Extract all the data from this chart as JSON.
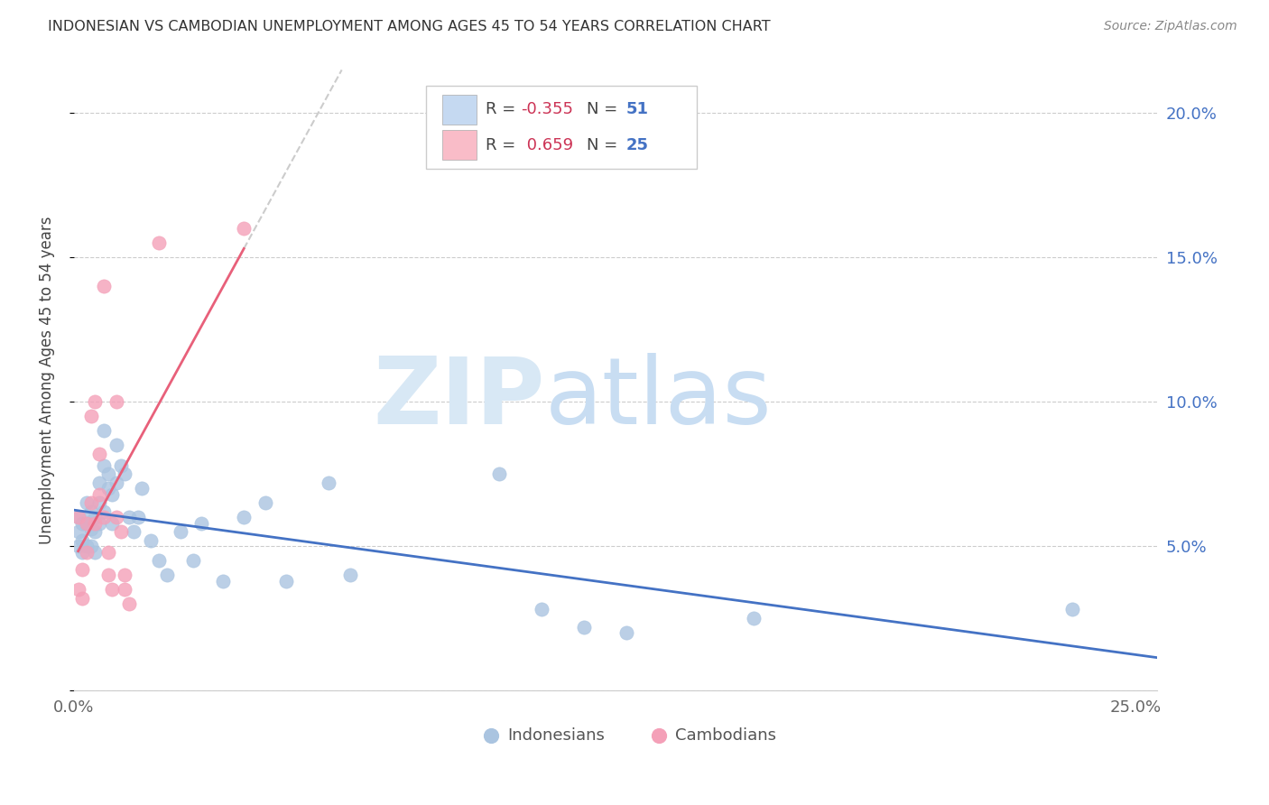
{
  "title": "INDONESIAN VS CAMBODIAN UNEMPLOYMENT AMONG AGES 45 TO 54 YEARS CORRELATION CHART",
  "source": "Source: ZipAtlas.com",
  "ylabel": "Unemployment Among Ages 45 to 54 years",
  "xlim": [
    0.0,
    0.255
  ],
  "ylim": [
    0.0,
    0.215
  ],
  "yticks": [
    0.0,
    0.05,
    0.1,
    0.15,
    0.2
  ],
  "xticks": [
    0.0,
    0.05,
    0.1,
    0.15,
    0.2,
    0.25
  ],
  "indonesian_color": "#aac4e0",
  "cambodian_color": "#f4a0b8",
  "indonesian_line_color": "#4472c4",
  "cambodian_line_color": "#e8607a",
  "legend_box_color_indo": "#c5d9f1",
  "legend_box_color_camb": "#f9bcc8",
  "indonesian_x": [
    0.001,
    0.001,
    0.001,
    0.002,
    0.002,
    0.002,
    0.003,
    0.003,
    0.003,
    0.004,
    0.004,
    0.004,
    0.005,
    0.005,
    0.005,
    0.006,
    0.006,
    0.006,
    0.007,
    0.007,
    0.007,
    0.008,
    0.008,
    0.009,
    0.009,
    0.01,
    0.01,
    0.011,
    0.012,
    0.013,
    0.014,
    0.015,
    0.016,
    0.018,
    0.02,
    0.022,
    0.025,
    0.028,
    0.03,
    0.035,
    0.04,
    0.045,
    0.05,
    0.06,
    0.065,
    0.1,
    0.11,
    0.13,
    0.16,
    0.235,
    0.12
  ],
  "indonesian_y": [
    0.06,
    0.055,
    0.05,
    0.058,
    0.052,
    0.048,
    0.065,
    0.058,
    0.05,
    0.062,
    0.056,
    0.05,
    0.06,
    0.055,
    0.048,
    0.072,
    0.065,
    0.058,
    0.09,
    0.078,
    0.062,
    0.075,
    0.07,
    0.068,
    0.058,
    0.085,
    0.072,
    0.078,
    0.075,
    0.06,
    0.055,
    0.06,
    0.07,
    0.052,
    0.045,
    0.04,
    0.055,
    0.045,
    0.058,
    0.038,
    0.06,
    0.065,
    0.038,
    0.072,
    0.04,
    0.075,
    0.028,
    0.02,
    0.025,
    0.028,
    0.022
  ],
  "cambodian_x": [
    0.001,
    0.001,
    0.002,
    0.002,
    0.003,
    0.003,
    0.004,
    0.004,
    0.005,
    0.005,
    0.006,
    0.006,
    0.007,
    0.007,
    0.008,
    0.008,
    0.009,
    0.01,
    0.01,
    0.011,
    0.012,
    0.012,
    0.013,
    0.02,
    0.04
  ],
  "cambodian_y": [
    0.06,
    0.035,
    0.042,
    0.032,
    0.058,
    0.048,
    0.065,
    0.095,
    0.1,
    0.058,
    0.068,
    0.082,
    0.14,
    0.06,
    0.048,
    0.04,
    0.035,
    0.1,
    0.06,
    0.055,
    0.04,
    0.035,
    0.03,
    0.155,
    0.16
  ]
}
